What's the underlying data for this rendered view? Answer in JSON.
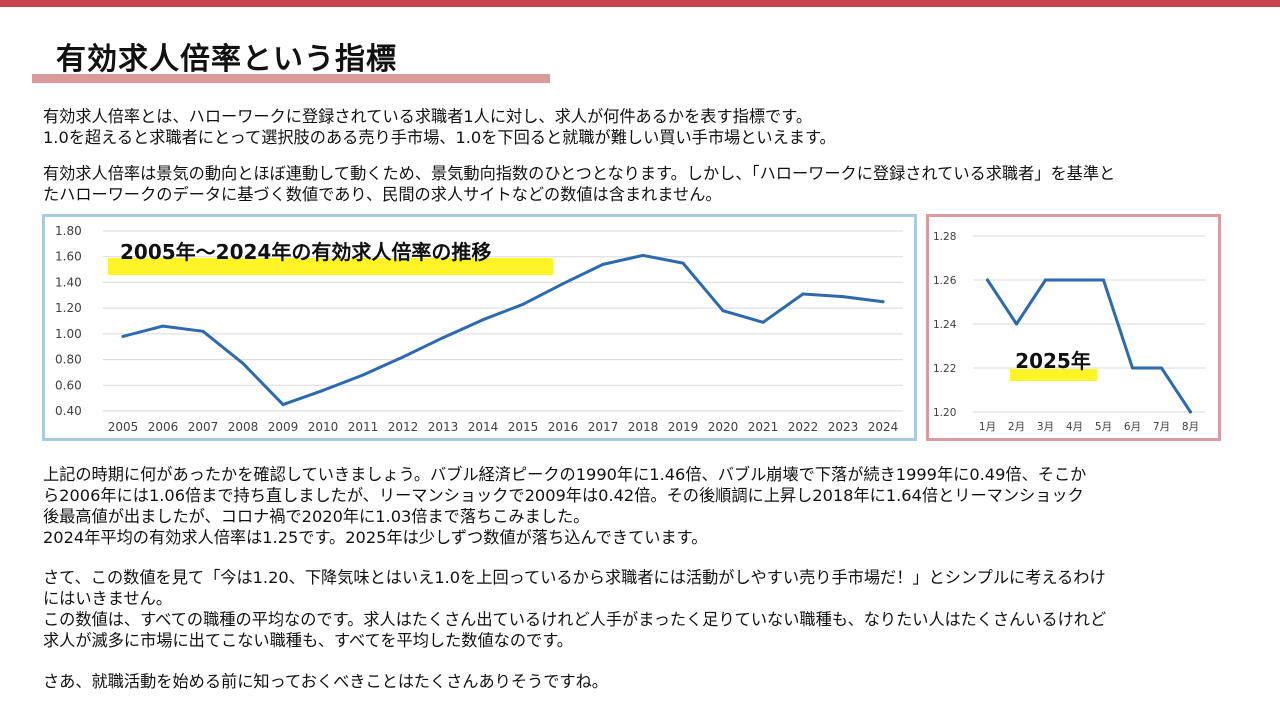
{
  "title": "有効求人倍率という指標",
  "paragraphs": {
    "p1": [
      "有効求人倍率とは、ハローワークに登録されている求職者1人に対し、求人が何件あるかを表す指標です。",
      "1.0を超えると求職者にとって選択肢のある売り手市場、1.0を下回ると就職が難しい買い手市場といえます。"
    ],
    "p2": [
      "有効求人倍率は景気の動向とほぼ連動して動くため、景気動向指数のひとつとなります。しかし、「ハローワークに登録されている求職者」を基準と",
      "たハローワークのデータに基づく数値であり、民間の求人サイトなどの数値は含まれません。"
    ],
    "p3": [
      "上記の時期に何があったかを確認していきましょう。バブル経済ピークの1990年に1.46倍、バブル崩壊で下落が続き1999年に0.49倍、そこか",
      "ら2006年には1.06倍まで持ち直しましたが、リーマンショックで2009年は0.42倍。その後順調に上昇し2018年に1.64倍とリーマンショック",
      "後最高値が出ましたが、コロナ禍で2020年に1.03倍まで落ちこみました。",
      "2024年平均の有効求人倍率は1.25です。2025年は少しずつ数値が落ち込んできています。"
    ],
    "p4": [
      "さて、この数値を見て「今は1.20、下降気味とはいえ1.0を上回っているから求職者には活動がしやすい売り手市場だ！」とシンプルに考えるわけ",
      "にはいきません。",
      "この数値は、すべての職種の平均なのです。求人はたくさん出ているけれど人手がまったく足りていない職種も、なりたい人はたくさんいるけれど",
      "求人が滅多に市場に出てこない職種も、すべてを平均した数値なのです。"
    ],
    "p5": [
      "さあ、就職活動を始める前に知っておくべきことはたくさんありそうですね。"
    ]
  },
  "colors": {
    "accent_bar": "#c9444a",
    "title_underline": "#d99a9c",
    "line": "#2e6aab",
    "highlight": "#fff200",
    "main_chart_border": "#a8cbe3",
    "small_chart_border": "#dd9a9e"
  },
  "chart_data": [
    {
      "type": "line",
      "title": "2005年～2024年の有効求人倍率の推移",
      "x": [
        "2005",
        "2006",
        "2007",
        "2008",
        "2009",
        "2010",
        "2011",
        "2012",
        "2013",
        "2014",
        "2015",
        "2016",
        "2017",
        "2018",
        "2019",
        "2020",
        "2021",
        "2022",
        "2023",
        "2024"
      ],
      "values": [
        0.98,
        1.06,
        1.02,
        0.77,
        0.45,
        0.56,
        0.68,
        0.82,
        0.97,
        1.11,
        1.23,
        1.39,
        1.54,
        1.61,
        1.55,
        1.18,
        1.09,
        1.31,
        1.29,
        1.25
      ],
      "ylim": [
        0.4,
        1.8
      ],
      "yticks": [
        "0.40",
        "0.60",
        "0.80",
        "1.00",
        "1.20",
        "1.40",
        "1.60",
        "1.80"
      ],
      "grid": true
    },
    {
      "type": "line",
      "title": "2025年",
      "x": [
        "1月",
        "2月",
        "3月",
        "4月",
        "5月",
        "6月",
        "7月",
        "8月"
      ],
      "values": [
        1.26,
        1.24,
        1.26,
        1.26,
        1.26,
        1.22,
        1.22,
        1.2
      ],
      "ylim": [
        1.2,
        1.28
      ],
      "yticks": [
        "1.20",
        "1.22",
        "1.24",
        "1.26",
        "1.28"
      ],
      "grid": true
    }
  ]
}
